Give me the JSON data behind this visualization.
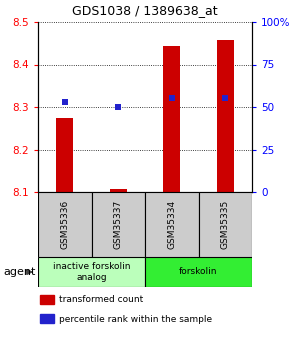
{
  "title": "GDS1038 / 1389638_at",
  "samples": [
    "GSM35336",
    "GSM35337",
    "GSM35334",
    "GSM35335"
  ],
  "bar_values": [
    8.275,
    8.108,
    8.443,
    8.457
  ],
  "percentile_values": [
    8.312,
    8.299,
    8.322,
    8.322
  ],
  "ylim_left": [
    8.1,
    8.5
  ],
  "ylim_right": [
    0,
    100
  ],
  "yticks_left": [
    8.1,
    8.2,
    8.3,
    8.4,
    8.5
  ],
  "yticks_right": [
    0,
    25,
    50,
    75,
    100
  ],
  "ytick_right_labels": [
    "0",
    "25",
    "50",
    "75",
    "100%"
  ],
  "bar_color": "#cc0000",
  "dot_color": "#2222cc",
  "bar_bottom": 8.1,
  "bar_width": 0.32,
  "groups": [
    {
      "label": "inactive forskolin\nanalog",
      "start": 0,
      "end": 2,
      "color": "#bbffbb"
    },
    {
      "label": "forskolin",
      "start": 2,
      "end": 4,
      "color": "#33ee33"
    }
  ],
  "legend_items": [
    {
      "color": "#cc0000",
      "label": "transformed count"
    },
    {
      "color": "#2222cc",
      "label": "percentile rank within the sample"
    }
  ],
  "agent_label": "agent",
  "sample_box_color": "#cccccc",
  "dot_size": 4.5
}
